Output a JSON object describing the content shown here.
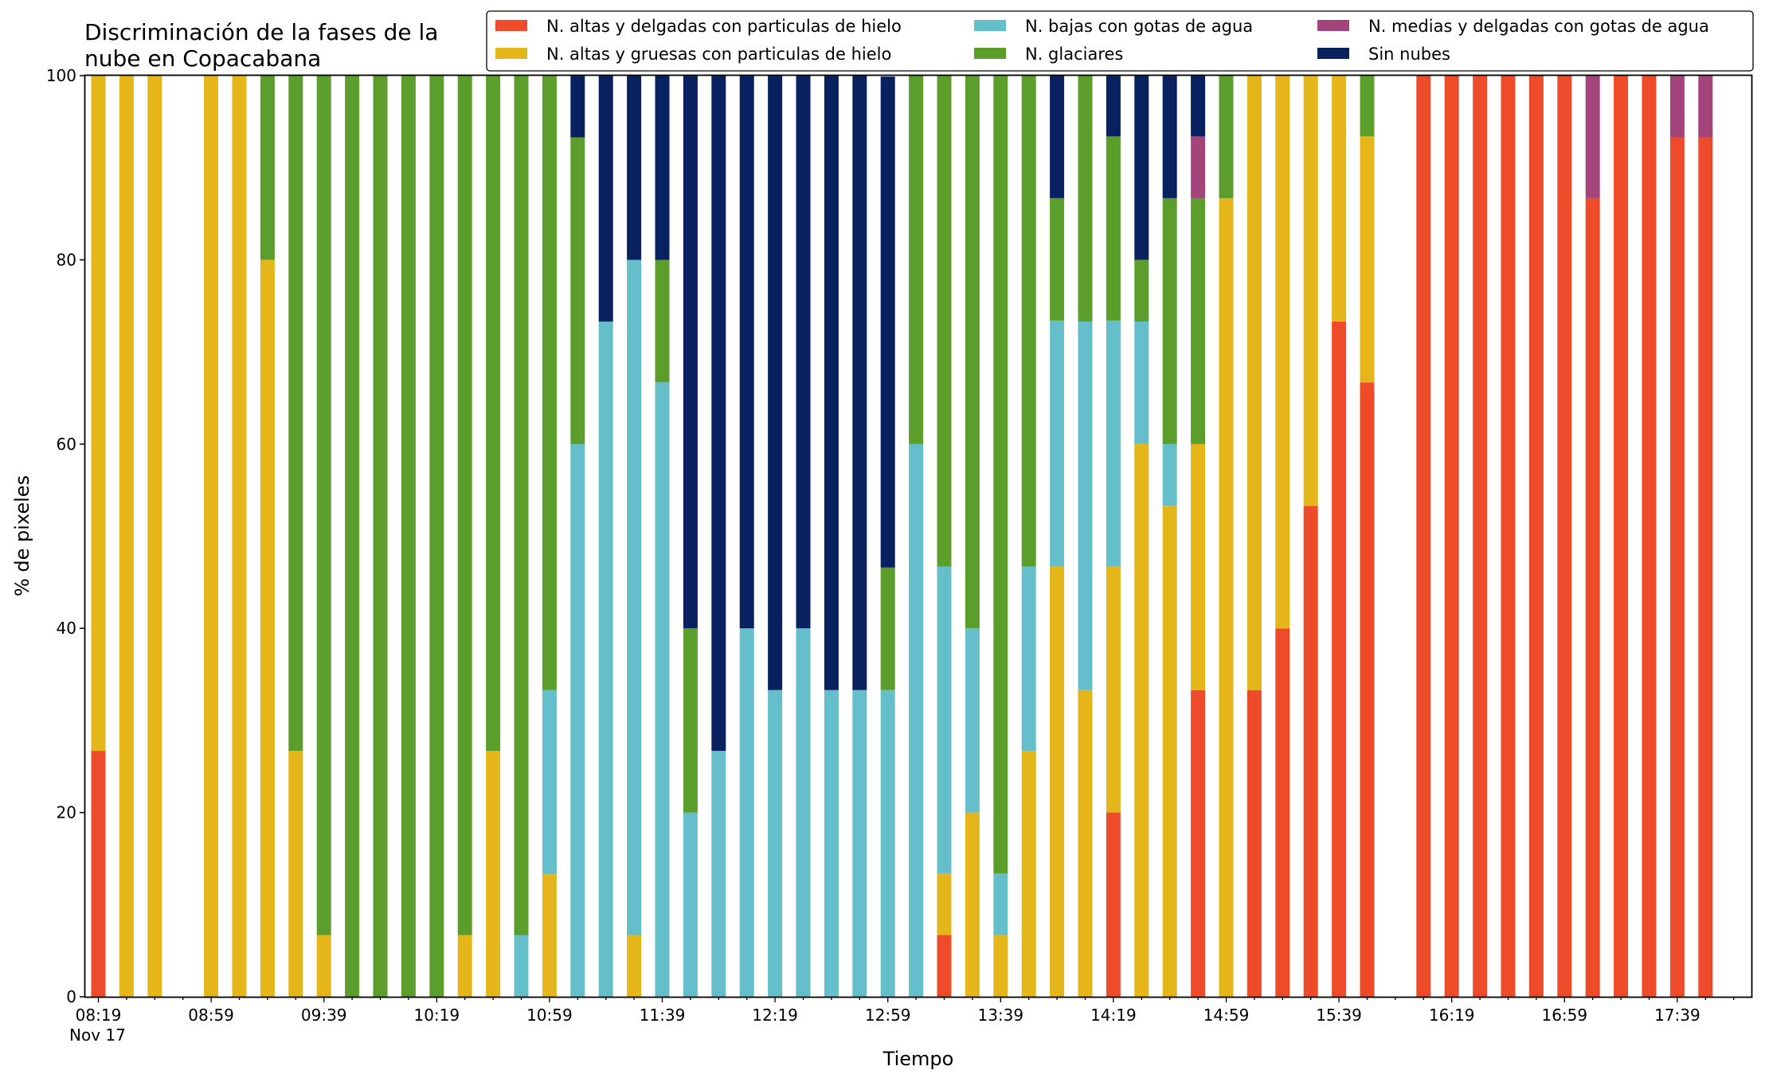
{
  "chart_data": {
    "type": "bar",
    "stacked": true,
    "title": "Discriminación de la fases de la nube en Copacabana",
    "title_lines": [
      "Discriminación de la fases de la",
      "nube en Copacabana"
    ],
    "xlabel": "Tiempo",
    "ylabel": "% de pixeles",
    "ylim": [
      0,
      100
    ],
    "yticks": [
      0,
      20,
      40,
      60,
      80,
      100
    ],
    "x_start": "08:19",
    "x_step_minutes": 10,
    "x_date_label": "Nov 17",
    "xtick_labels": [
      "08:19",
      "08:59",
      "09:39",
      "10:19",
      "10:59",
      "11:39",
      "12:19",
      "12:59",
      "13:39",
      "14:19",
      "14:59",
      "15:39",
      "16:19",
      "16:59",
      "17:39"
    ],
    "xtick_label_every_n_slots": 4,
    "slot_count": 59,
    "legend_position": "top-right",
    "legend_columns": 3,
    "grid": false,
    "series": [
      {
        "name": "N. altas y delgadas con particulas de hielo",
        "color": "#ee4b2b"
      },
      {
        "name": "N. altas y gruesas con particulas de hielo",
        "color": "#e4b619"
      },
      {
        "name": "N. bajas con gotas de agua",
        "color": "#65bfca"
      },
      {
        "name": "N. glaciares",
        "color": "#5c9e2b"
      },
      {
        "name": "N. medias y delgadas con gotas de agua",
        "color": "#a3457a"
      },
      {
        "name": "Sin nubes",
        "color": "#0a2160"
      }
    ],
    "bars": [
      {
        "slot": 0,
        "values": [
          26.7,
          73.3,
          0,
          0,
          0,
          0
        ]
      },
      {
        "slot": 1,
        "values": [
          0,
          100,
          0,
          0,
          0,
          0
        ]
      },
      {
        "slot": 2,
        "values": [
          0,
          100,
          0,
          0,
          0,
          0
        ]
      },
      {
        "slot": 4,
        "values": [
          0,
          100,
          0,
          0,
          0,
          0
        ]
      },
      {
        "slot": 5,
        "values": [
          0,
          100,
          0,
          0,
          0,
          0
        ]
      },
      {
        "slot": 6,
        "values": [
          0,
          80,
          0,
          20,
          0,
          0
        ]
      },
      {
        "slot": 7,
        "values": [
          0,
          26.7,
          0,
          73.3,
          0,
          0
        ]
      },
      {
        "slot": 8,
        "values": [
          0,
          6.7,
          0,
          93.3,
          0,
          0
        ]
      },
      {
        "slot": 9,
        "values": [
          0,
          0,
          0,
          100,
          0,
          0
        ]
      },
      {
        "slot": 10,
        "values": [
          0,
          0,
          0,
          100,
          0,
          0
        ]
      },
      {
        "slot": 11,
        "values": [
          0,
          0,
          0,
          100,
          0,
          0
        ]
      },
      {
        "slot": 12,
        "values": [
          0,
          0,
          0,
          100,
          0,
          0
        ]
      },
      {
        "slot": 13,
        "values": [
          0,
          6.7,
          0,
          93.3,
          0,
          0
        ]
      },
      {
        "slot": 14,
        "values": [
          0,
          26.7,
          0,
          73.3,
          0,
          0
        ]
      },
      {
        "slot": 15,
        "values": [
          0,
          0,
          6.7,
          93.3,
          0,
          0
        ]
      },
      {
        "slot": 16,
        "values": [
          0,
          13.3,
          20,
          66.7,
          0,
          0
        ]
      },
      {
        "slot": 17,
        "values": [
          0,
          0,
          60,
          33.3,
          0,
          6.7
        ]
      },
      {
        "slot": 18,
        "values": [
          0,
          0,
          73.3,
          0,
          0,
          26.7
        ]
      },
      {
        "slot": 19,
        "values": [
          0,
          6.7,
          73.3,
          0,
          0,
          20
        ]
      },
      {
        "slot": 20,
        "values": [
          0,
          0,
          66.7,
          13.3,
          0,
          20
        ]
      },
      {
        "slot": 21,
        "values": [
          0,
          0,
          20,
          20,
          0,
          60
        ]
      },
      {
        "slot": 22,
        "values": [
          0,
          0,
          26.7,
          0,
          0,
          73.3
        ]
      },
      {
        "slot": 23,
        "values": [
          0,
          0,
          40,
          0,
          0,
          60
        ]
      },
      {
        "slot": 24,
        "values": [
          0,
          0,
          33.3,
          0,
          0,
          66.7
        ]
      },
      {
        "slot": 25,
        "values": [
          0,
          0,
          40,
          0,
          0,
          60
        ]
      },
      {
        "slot": 26,
        "values": [
          0,
          0,
          33.3,
          0,
          0,
          66.7
        ]
      },
      {
        "slot": 27,
        "values": [
          0,
          0,
          33.3,
          0,
          0,
          66.7
        ]
      },
      {
        "slot": 28,
        "values": [
          0,
          0,
          33.3,
          13.3,
          0,
          53.3
        ]
      },
      {
        "slot": 29,
        "values": [
          0,
          0,
          60,
          40,
          0,
          0
        ]
      },
      {
        "slot": 30,
        "values": [
          6.7,
          6.7,
          33.3,
          53.3,
          0,
          0
        ]
      },
      {
        "slot": 31,
        "values": [
          0,
          20,
          20,
          60,
          0,
          0
        ]
      },
      {
        "slot": 32,
        "values": [
          0,
          6.7,
          6.7,
          86.7,
          0,
          0
        ]
      },
      {
        "slot": 33,
        "values": [
          0,
          26.7,
          20,
          53.3,
          0,
          0
        ]
      },
      {
        "slot": 34,
        "values": [
          0,
          46.7,
          26.7,
          13.3,
          0,
          13.3
        ]
      },
      {
        "slot": 35,
        "values": [
          0,
          33.3,
          40,
          26.7,
          0,
          0
        ]
      },
      {
        "slot": 36,
        "values": [
          20,
          26.7,
          26.7,
          20,
          0,
          6.7
        ]
      },
      {
        "slot": 37,
        "values": [
          0,
          60,
          13.3,
          6.7,
          0,
          20
        ]
      },
      {
        "slot": 38,
        "values": [
          0,
          53.3,
          6.7,
          26.7,
          0,
          13.3
        ]
      },
      {
        "slot": 39,
        "values": [
          33.3,
          26.7,
          0,
          26.7,
          6.7,
          6.7
        ]
      },
      {
        "slot": 40,
        "values": [
          0,
          86.7,
          0,
          13.3,
          0,
          0
        ]
      },
      {
        "slot": 41,
        "values": [
          33.3,
          66.7,
          0,
          0,
          0,
          0
        ]
      },
      {
        "slot": 42,
        "values": [
          40,
          60,
          0,
          0,
          0,
          0
        ]
      },
      {
        "slot": 43,
        "values": [
          53.3,
          46.7,
          0,
          0,
          0,
          0
        ]
      },
      {
        "slot": 44,
        "values": [
          73.3,
          26.7,
          0,
          0,
          0,
          0
        ]
      },
      {
        "slot": 45,
        "values": [
          66.7,
          26.7,
          0,
          6.7,
          0,
          0
        ]
      },
      {
        "slot": 47,
        "values": [
          100,
          0,
          0,
          0,
          0,
          0
        ]
      },
      {
        "slot": 48,
        "values": [
          100,
          0,
          0,
          0,
          0,
          0
        ]
      },
      {
        "slot": 49,
        "values": [
          100,
          0,
          0,
          0,
          0,
          0
        ]
      },
      {
        "slot": 50,
        "values": [
          100,
          0,
          0,
          0,
          0,
          0
        ]
      },
      {
        "slot": 51,
        "values": [
          100,
          0,
          0,
          0,
          0,
          0
        ]
      },
      {
        "slot": 52,
        "values": [
          100,
          0,
          0,
          0,
          0,
          0
        ]
      },
      {
        "slot": 53,
        "values": [
          86.7,
          0,
          0,
          0,
          13.3,
          0
        ]
      },
      {
        "slot": 54,
        "values": [
          100,
          0,
          0,
          0,
          0,
          0
        ]
      },
      {
        "slot": 55,
        "values": [
          100,
          0,
          0,
          0,
          0,
          0
        ]
      },
      {
        "slot": 56,
        "values": [
          93.3,
          0,
          0,
          0,
          6.7,
          0
        ]
      },
      {
        "slot": 57,
        "values": [
          93.3,
          0,
          0,
          0,
          6.7,
          0
        ]
      }
    ]
  }
}
